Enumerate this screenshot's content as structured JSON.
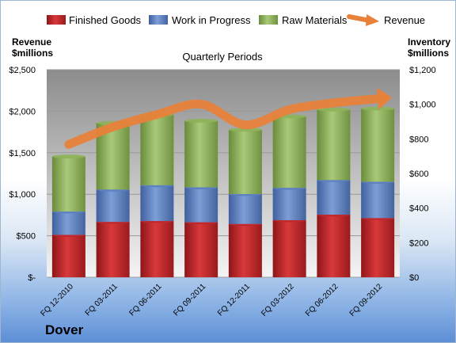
{
  "chart_data": {
    "type": "bar",
    "title": "Quarterly Periods",
    "company": "Dover",
    "left_axis_label": [
      "Revenue",
      "$millions"
    ],
    "right_axis_label": [
      "Inventory",
      "$millions"
    ],
    "categories": [
      "FQ 12-2010",
      "FQ 03-2011",
      "FQ 06-2011",
      "FQ 09-2011",
      "FQ 12-2011",
      "FQ 03-2012",
      "FQ 06-2012",
      "FQ 09-2012"
    ],
    "left_ticks": [
      "$-",
      "$500",
      "$1,000",
      "$1,500",
      "$2,000",
      "$2,500"
    ],
    "right_ticks": [
      "$0",
      "$200",
      "$400",
      "$600",
      "$800",
      "$1,000",
      "$1,200"
    ],
    "left_ylim": [
      0,
      2500
    ],
    "right_ylim": [
      0,
      1200
    ],
    "stacked": true,
    "grid": true,
    "legend_position": "top",
    "series": [
      {
        "name": "Finished Goods",
        "axis": "right",
        "color": "#c0282c",
        "values": [
          245,
          320,
          325,
          318,
          308,
          330,
          362,
          342
        ]
      },
      {
        "name": "Work in Progress",
        "axis": "right",
        "color": "#5b7fc1",
        "values": [
          135,
          187,
          207,
          202,
          173,
          187,
          200,
          210
        ]
      },
      {
        "name": "Raw Materials",
        "axis": "right",
        "color": "#8db35a",
        "values": [
          318,
          385,
          408,
          385,
          372,
          413,
          408,
          423
        ]
      },
      {
        "name": "Revenue",
        "axis": "left",
        "type": "line",
        "color": "#e8823a",
        "values": [
          1600,
          1810,
          1960,
          2085,
          1835,
          2020,
          2100,
          2150
        ]
      }
    ]
  }
}
